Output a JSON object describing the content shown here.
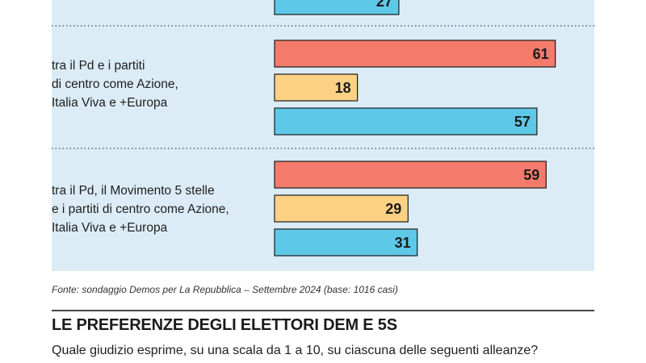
{
  "chart_data": {
    "type": "bar",
    "orientation": "horizontal",
    "value_range": [
      0,
      70
    ],
    "categories": [
      "tra il Pd e i partiti\ndi centro come Azione,\nItalia Viva e +Europa",
      "tra il Pd, il Movimento 5 stelle\ne i partiti di centro come Azione,\nItalia Viva e +Europa"
    ],
    "series": [
      {
        "values": [
          61,
          59
        ],
        "color": "#f47b6b"
      },
      {
        "values": [
          18,
          29
        ],
        "color": "#fdd184"
      },
      {
        "values": [
          57,
          31
        ],
        "color": "#5ec8e8"
      }
    ],
    "partial_top_group": {
      "visible_values": [
        27
      ],
      "color": "#5ec8e8"
    },
    "grid": false,
    "legend": "none"
  },
  "source": "Fonte: sondaggio Demos per La Repubblica – Settembre 2024 (base: 1016 casi)",
  "next_section": {
    "title": "LE PREFERENZE DEGLI ELETTORI DEM E 5S",
    "question": "Quale giudizio esprime, su una scala da 1 a 10, su ciascuna delle seguenti alleanze?"
  },
  "colors": {
    "panel_background": "#dcecf6",
    "separator": "#3a4a60",
    "bar_outline": "#1a1a1a"
  }
}
